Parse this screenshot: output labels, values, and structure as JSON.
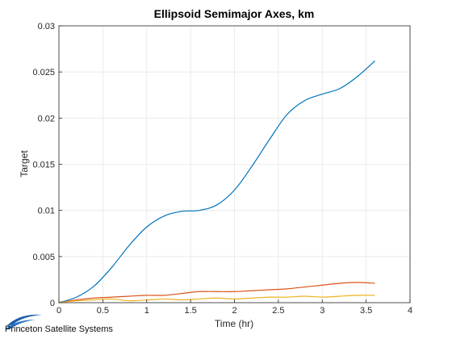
{
  "chart_data": {
    "type": "line",
    "title": "Ellipsoid Semimajor Axes, km",
    "xlabel": "Time (hr)",
    "ylabel": "Target",
    "xlim": [
      0,
      4
    ],
    "ylim": [
      0,
      0.03
    ],
    "xticks": [
      0,
      0.5,
      1,
      1.5,
      2,
      2.5,
      3,
      3.5,
      4
    ],
    "xtick_labels": [
      "0",
      "0.5",
      "1",
      "1.5",
      "2",
      "2.5",
      "3",
      "3.5",
      "4"
    ],
    "yticks": [
      0,
      0.005,
      0.01,
      0.015,
      0.02,
      0.025,
      0.03
    ],
    "ytick_labels": [
      "0",
      "0.005",
      "0.01",
      "0.015",
      "0.02",
      "0.025",
      "0.03"
    ],
    "grid": true,
    "series": [
      {
        "color": "#0072BD",
        "x": [
          0,
          0.2,
          0.4,
          0.6,
          0.8,
          1.0,
          1.2,
          1.4,
          1.6,
          1.8,
          2.0,
          2.2,
          2.4,
          2.6,
          2.8,
          3.0,
          3.2,
          3.4,
          3.6
        ],
        "values": [
          0,
          0.0006,
          0.0018,
          0.0038,
          0.0062,
          0.0082,
          0.0094,
          0.0099,
          0.01,
          0.0106,
          0.0122,
          0.0148,
          0.0177,
          0.0204,
          0.0219,
          0.0226,
          0.0232,
          0.0245,
          0.0262
        ]
      },
      {
        "color": "#D95319",
        "x": [
          0,
          0.2,
          0.4,
          0.6,
          0.8,
          1.0,
          1.2,
          1.4,
          1.6,
          1.8,
          2.0,
          2.2,
          2.4,
          2.6,
          2.8,
          3.0,
          3.2,
          3.4,
          3.6
        ],
        "values": [
          0,
          0.0003,
          0.0005,
          0.0006,
          0.0007,
          0.0008,
          0.0008,
          0.001,
          0.0012,
          0.0012,
          0.0012,
          0.0013,
          0.0014,
          0.0015,
          0.0017,
          0.0019,
          0.0021,
          0.0022,
          0.0021
        ]
      },
      {
        "color": "#EDB120",
        "x": [
          0,
          0.2,
          0.4,
          0.6,
          0.8,
          1.0,
          1.2,
          1.4,
          1.6,
          1.8,
          2.0,
          2.2,
          2.4,
          2.6,
          2.8,
          3.0,
          3.2,
          3.4,
          3.6
        ],
        "values": [
          0,
          0.0002,
          0.0003,
          0.0004,
          0.0002,
          0.0003,
          0.0004,
          0.0003,
          0.0004,
          0.0005,
          0.0004,
          0.0005,
          0.0006,
          0.0006,
          0.0007,
          0.0006,
          0.0007,
          0.0008,
          0.0008
        ]
      }
    ]
  },
  "footer": {
    "logo_text": "Princeton Satellite Systems"
  }
}
